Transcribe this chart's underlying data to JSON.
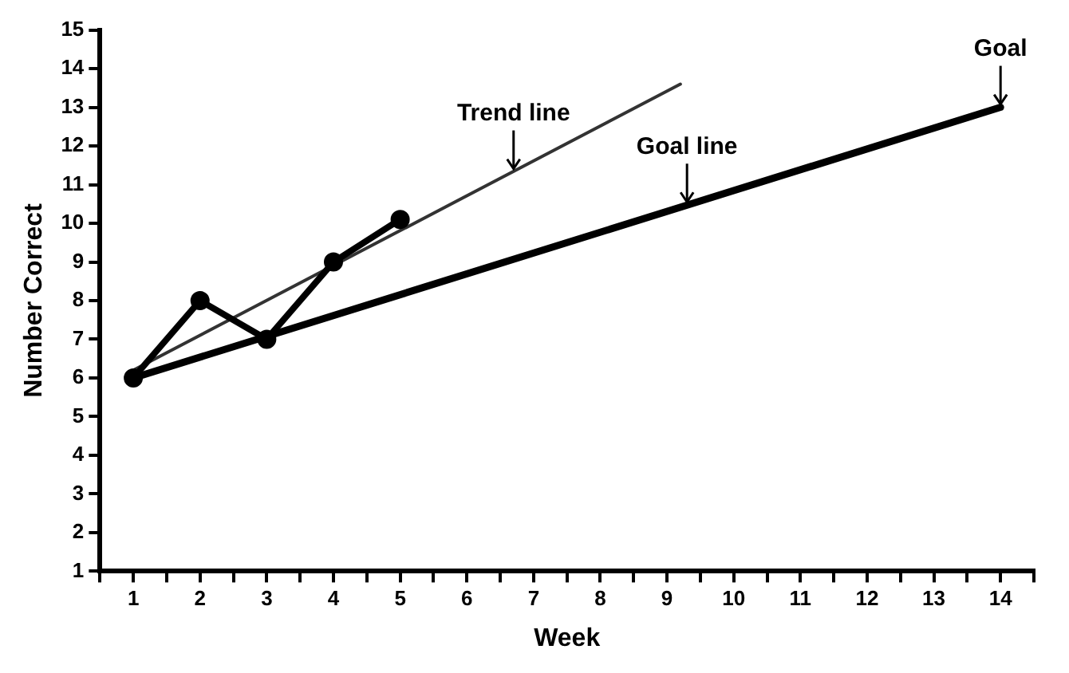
{
  "chart_data": {
    "type": "line",
    "xlabel": "Week",
    "ylabel": "Number Correct",
    "xlim": [
      0.5,
      14.5
    ],
    "xticks": [
      {
        "value": 0.5,
        "label": null
      },
      1,
      {
        "value": 1.5,
        "label": null
      },
      2,
      {
        "value": 2.5,
        "label": null
      },
      3,
      {
        "value": 3.5,
        "label": null
      },
      4,
      {
        "value": 4.5,
        "label": null
      },
      5,
      {
        "value": 5.5,
        "label": null
      },
      6,
      {
        "value": 6.5,
        "label": null
      },
      7,
      {
        "value": 7.5,
        "label": null
      },
      8,
      {
        "value": 8.5,
        "label": null
      },
      9,
      {
        "value": 9.5,
        "label": null
      },
      10,
      {
        "value": 10.5,
        "label": null
      },
      11,
      {
        "value": 11.5,
        "label": null
      },
      12,
      {
        "value": 12.5,
        "label": null
      },
      13,
      {
        "value": 13.5,
        "label": null
      },
      14,
      {
        "value": 14.5,
        "label": null
      }
    ],
    "ylim": [
      1,
      15
    ],
    "yticks": [
      1,
      2,
      3,
      4,
      5,
      6,
      7,
      8,
      9,
      10,
      11,
      12,
      13,
      14,
      15
    ],
    "grid": false,
    "legend": false,
    "series": [
      {
        "color": "#000000",
        "x": [
          1,
          2,
          3,
          4,
          5
        ],
        "values": [
          6,
          8,
          7,
          9,
          10.1
        ],
        "marker": "circle"
      },
      {
        "color": "#333333",
        "x": [
          1,
          9.2
        ],
        "values": [
          6.2,
          13.6
        ],
        "marker": "none"
      },
      {
        "color": "#000000",
        "x": [
          1,
          14
        ],
        "values": [
          6,
          13
        ],
        "marker": "none"
      }
    ],
    "annotations": [
      {
        "text": "Trend line",
        "x": 6.7,
        "y": 11.33
      },
      {
        "text": "Goal line",
        "x": 9.3,
        "y": 10.47
      },
      {
        "text": "Goal",
        "x": 14,
        "y": 13
      }
    ]
  }
}
